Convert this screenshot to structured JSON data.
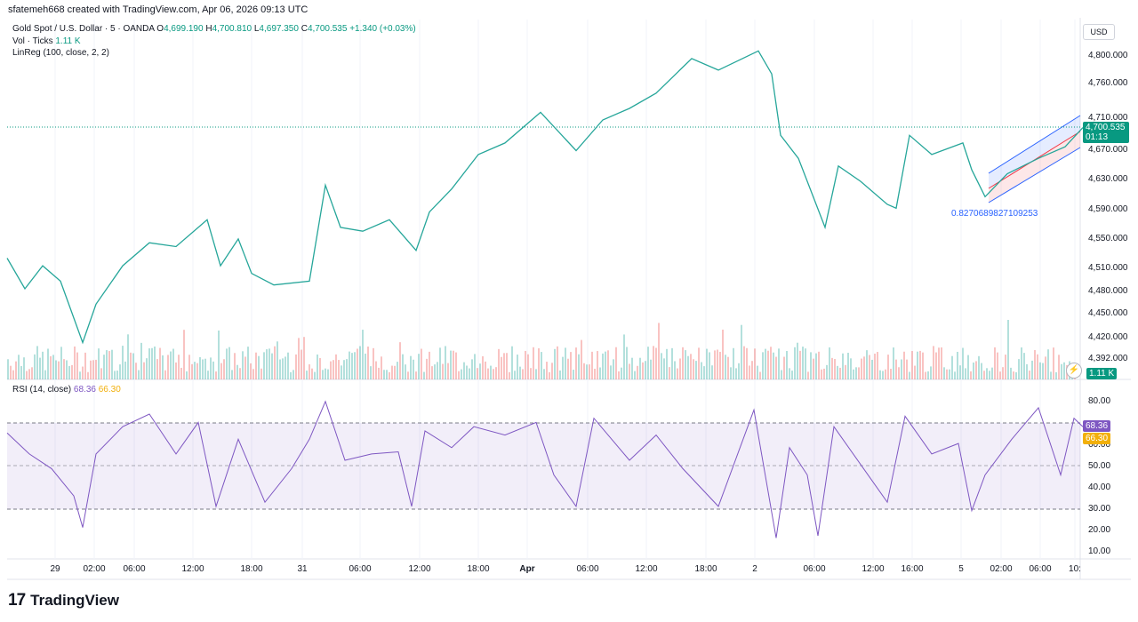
{
  "header": {
    "credit": "sfatemeh668 created with TradingView.com, Apr 06, 2026 09:13 UTC"
  },
  "legend": {
    "symbol": "Gold Spot / U.S. Dollar · 5 · OANDA",
    "open_label": "O",
    "open": "4,699.190",
    "high_label": "H",
    "high": "4,700.810",
    "low_label": "L",
    "low": "4,697.350",
    "close_label": "C",
    "close": "4,700.535",
    "change": "+1.340 (+0.03%)",
    "vol_label": "Vol · Ticks",
    "vol_value": "1.11 K",
    "linreg_label": "LinReg (100, close, 2, 2)"
  },
  "currency": "USD",
  "price_axis": [
    "4,800.000",
    "4,760.000",
    "4,710.000",
    "4,670.000",
    "4,630.000",
    "4,590.000",
    "4,550.000",
    "4,510.000",
    "4,480.000",
    "4,450.000",
    "4,420.000",
    "4,392.000"
  ],
  "current_price": "4,700.535",
  "countdown": "01:13",
  "volume_tag": "1.11 K",
  "linreg_value": "0.8270689827109253",
  "rsi": {
    "label": "RSI (14, close)",
    "value": "68.36",
    "ma_value": "66.30",
    "axis": [
      "80.00",
      "60.00",
      "50.00",
      "40.00",
      "30.00",
      "20.00",
      "10.00"
    ]
  },
  "time_axis": [
    {
      "label": "29",
      "bold": false
    },
    {
      "label": "02:00",
      "bold": false
    },
    {
      "label": "06:00",
      "bold": false
    },
    {
      "label": "12:00",
      "bold": false
    },
    {
      "label": "18:00",
      "bold": false
    },
    {
      "label": "31",
      "bold": false
    },
    {
      "label": "06:00",
      "bold": false
    },
    {
      "label": "12:00",
      "bold": false
    },
    {
      "label": "18:00",
      "bold": false
    },
    {
      "label": "Apr",
      "bold": true
    },
    {
      "label": "06:00",
      "bold": false
    },
    {
      "label": "12:00",
      "bold": false
    },
    {
      "label": "18:00",
      "bold": false
    },
    {
      "label": "2",
      "bold": false
    },
    {
      "label": "06:00",
      "bold": false
    },
    {
      "label": "12:00",
      "bold": false
    },
    {
      "label": "16:00",
      "bold": false
    },
    {
      "label": "5",
      "bold": false
    },
    {
      "label": "02:00",
      "bold": false
    },
    {
      "label": "06:00",
      "bold": false
    },
    {
      "label": "10:",
      "bold": false
    }
  ],
  "chart_data": {
    "type": "line",
    "price_path": [
      [
        0,
        4530
      ],
      [
        20,
        4490
      ],
      [
        40,
        4520
      ],
      [
        60,
        4500
      ],
      [
        85,
        4420
      ],
      [
        100,
        4470
      ],
      [
        130,
        4520
      ],
      [
        160,
        4550
      ],
      [
        190,
        4545
      ],
      [
        225,
        4580
      ],
      [
        240,
        4520
      ],
      [
        260,
        4555
      ],
      [
        275,
        4510
      ],
      [
        300,
        4495
      ],
      [
        340,
        4500
      ],
      [
        358,
        4625
      ],
      [
        375,
        4570
      ],
      [
        400,
        4565
      ],
      [
        430,
        4580
      ],
      [
        460,
        4540
      ],
      [
        475,
        4590
      ],
      [
        500,
        4620
      ],
      [
        530,
        4665
      ],
      [
        560,
        4680
      ],
      [
        600,
        4720
      ],
      [
        640,
        4670
      ],
      [
        670,
        4710
      ],
      [
        700,
        4725
      ],
      [
        730,
        4745
      ],
      [
        770,
        4790
      ],
      [
        800,
        4775
      ],
      [
        845,
        4800
      ],
      [
        860,
        4770
      ],
      [
        870,
        4690
      ],
      [
        890,
        4660
      ],
      [
        910,
        4600
      ],
      [
        920,
        4570
      ],
      [
        935,
        4650
      ],
      [
        960,
        4630
      ],
      [
        990,
        4600
      ],
      [
        1000,
        4595
      ],
      [
        1015,
        4690
      ],
      [
        1040,
        4665
      ],
      [
        1075,
        4680
      ],
      [
        1085,
        4645
      ],
      [
        1100,
        4610
      ],
      [
        1125,
        4640
      ],
      [
        1160,
        4660
      ],
      [
        1190,
        4675
      ],
      [
        1210,
        4700
      ]
    ],
    "rsi_path": [
      [
        0,
        65
      ],
      [
        25,
        55
      ],
      [
        50,
        48
      ],
      [
        75,
        35
      ],
      [
        85,
        20
      ],
      [
        100,
        55
      ],
      [
        130,
        68
      ],
      [
        160,
        74
      ],
      [
        190,
        55
      ],
      [
        215,
        70
      ],
      [
        235,
        30
      ],
      [
        260,
        62
      ],
      [
        290,
        32
      ],
      [
        320,
        48
      ],
      [
        340,
        62
      ],
      [
        358,
        80
      ],
      [
        380,
        52
      ],
      [
        410,
        55
      ],
      [
        440,
        56
      ],
      [
        455,
        30
      ],
      [
        470,
        66
      ],
      [
        500,
        58
      ],
      [
        525,
        68
      ],
      [
        560,
        64
      ],
      [
        595,
        70
      ],
      [
        615,
        45
      ],
      [
        640,
        30
      ],
      [
        660,
        72
      ],
      [
        700,
        52
      ],
      [
        730,
        64
      ],
      [
        760,
        48
      ],
      [
        800,
        30
      ],
      [
        840,
        76
      ],
      [
        865,
        15
      ],
      [
        880,
        58
      ],
      [
        900,
        45
      ],
      [
        912,
        16
      ],
      [
        930,
        68
      ],
      [
        960,
        50
      ],
      [
        990,
        32
      ],
      [
        1010,
        73
      ],
      [
        1040,
        55
      ],
      [
        1070,
        60
      ],
      [
        1085,
        28
      ],
      [
        1100,
        45
      ],
      [
        1130,
        62
      ],
      [
        1160,
        77
      ],
      [
        1185,
        45
      ],
      [
        1200,
        72
      ],
      [
        1210,
        68
      ]
    ],
    "ylim_price": [
      4380,
      4820
    ],
    "ylim_rsi": [
      5,
      85
    ]
  }
}
